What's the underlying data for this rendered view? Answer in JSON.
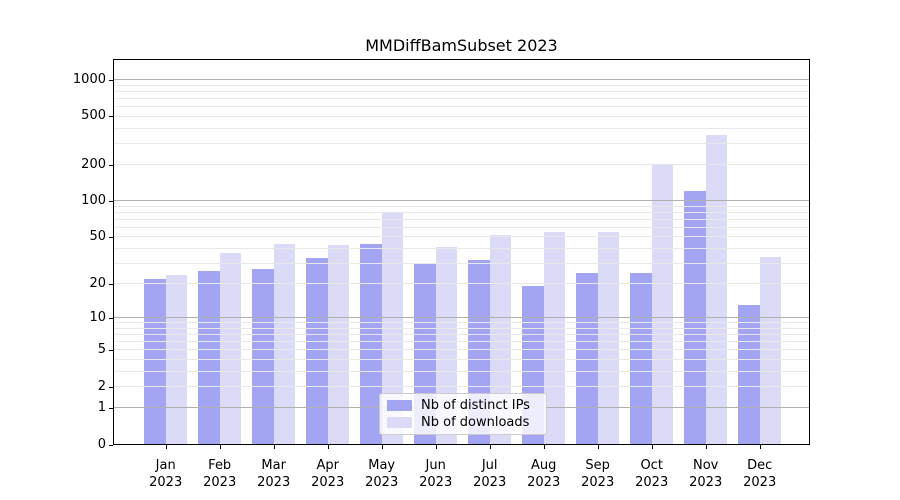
{
  "title": "MMDiffBamSubset 2023",
  "chart_data": {
    "type": "bar",
    "title": "MMDiffBamSubset 2023",
    "categories": [
      "Jan 2023",
      "Feb 2023",
      "Mar 2023",
      "Apr 2023",
      "May 2023",
      "Jun 2023",
      "Jul 2023",
      "Aug 2023",
      "Sep 2023",
      "Oct 2023",
      "Nov 2023",
      "Dec 2023"
    ],
    "series": [
      {
        "name": "Nb of distinct IPs",
        "color": "#a3a4f2",
        "values": [
          22,
          26,
          27,
          33,
          44,
          30,
          32,
          19,
          25,
          25,
          122,
          13
        ]
      },
      {
        "name": "Nb of downloads",
        "color": "#dbdbf8",
        "values": [
          24,
          37,
          44,
          43,
          81,
          41,
          52,
          55,
          55,
          200,
          350,
          34
        ]
      }
    ],
    "xlabel": "",
    "ylabel": "",
    "yscale": "log10(1+x)",
    "yticks": [
      0,
      1,
      2,
      5,
      10,
      20,
      50,
      100,
      200,
      500,
      1000
    ],
    "ylim": [
      0,
      1490
    ],
    "grid": "both",
    "legend_position": "lower center",
    "colors": {
      "major_grid": "#b0b0b0",
      "minor_grid": "#e8e8e8",
      "spine": "#000000",
      "text": "#000000",
      "legend_border": "#cccccc"
    }
  }
}
